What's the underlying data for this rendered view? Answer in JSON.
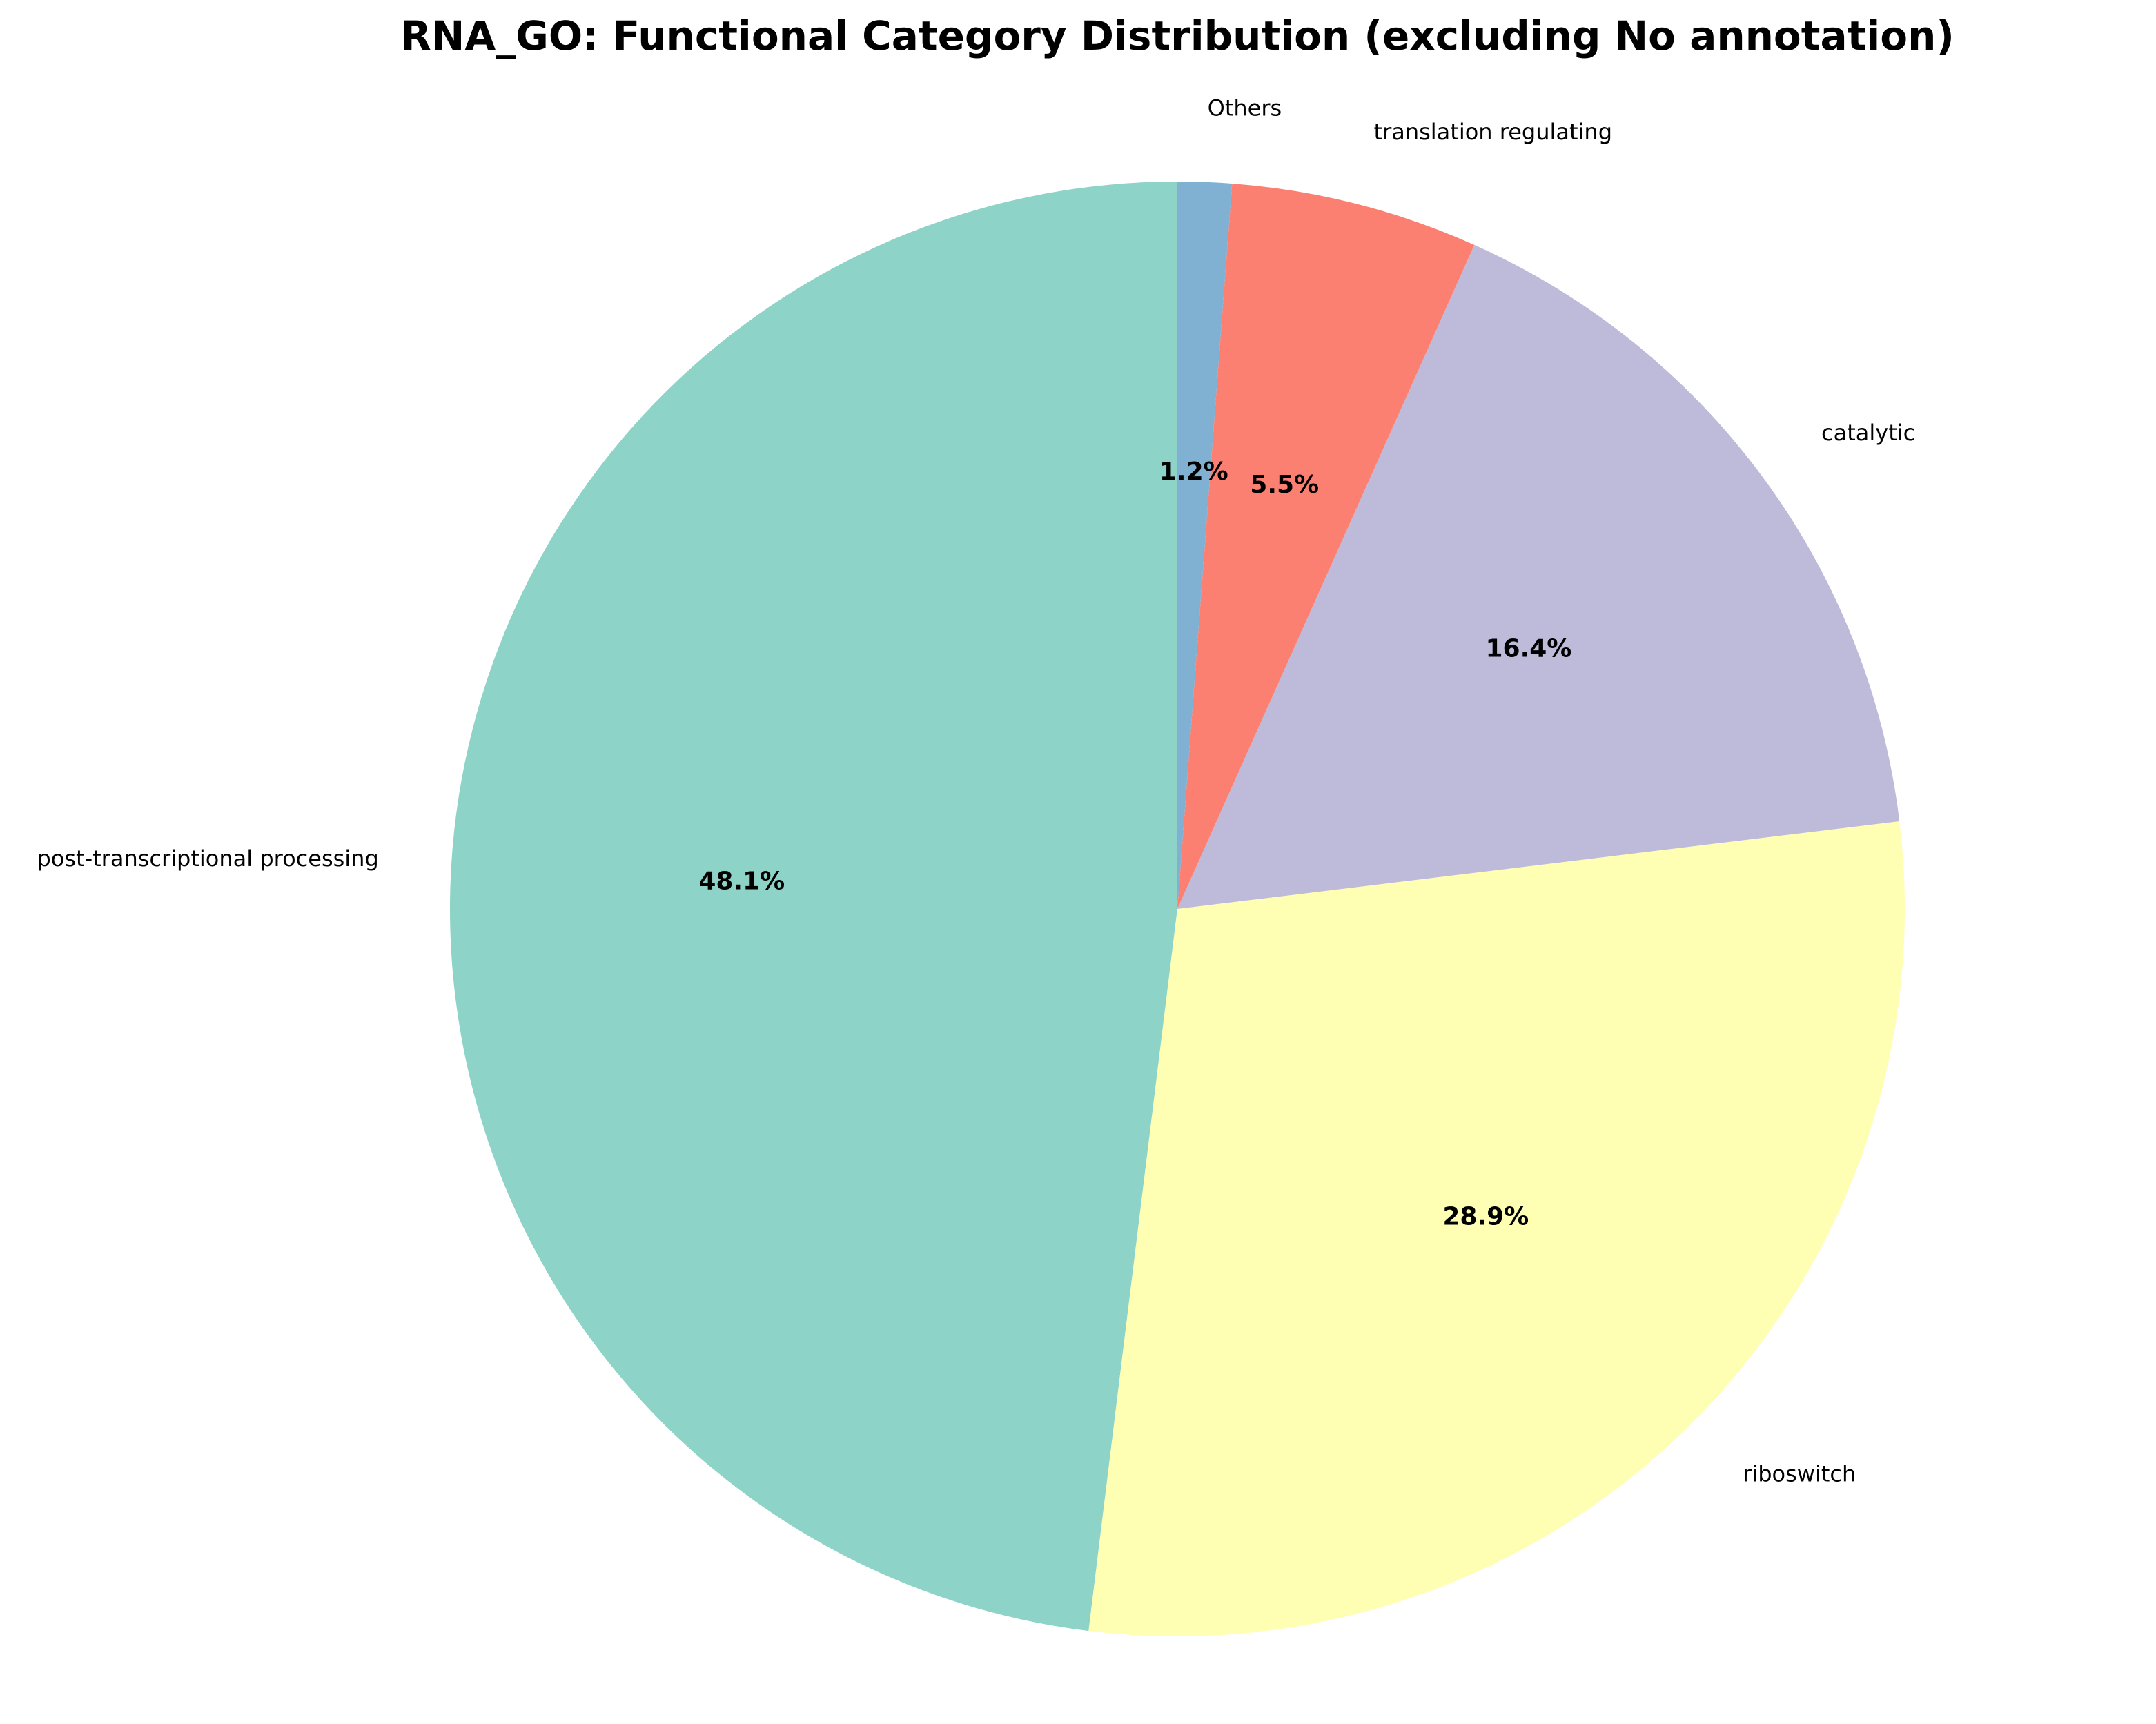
{
  "chart_data": {
    "type": "pie",
    "title": "RNA_GO: Functional Category Distribution (excluding No annotation)",
    "slices": [
      {
        "label": "post-transcriptional processing",
        "value": 48.1,
        "pct_label": "48.1%",
        "color": "#8dd3c7"
      },
      {
        "label": "riboswitch",
        "value": 28.9,
        "pct_label": "28.9%",
        "color": "#ffffb3"
      },
      {
        "label": "catalytic",
        "value": 16.4,
        "pct_label": "16.4%",
        "color": "#bebada"
      },
      {
        "label": "translation regulating",
        "value": 5.5,
        "pct_label": "5.5%",
        "color": "#fb8072"
      },
      {
        "label": "Others",
        "value": 1.2,
        "pct_label": "1.2%",
        "color": "#80b1d3"
      }
    ],
    "start_angle_deg": 90,
    "direction": "counterclockwise",
    "legend": "none"
  }
}
